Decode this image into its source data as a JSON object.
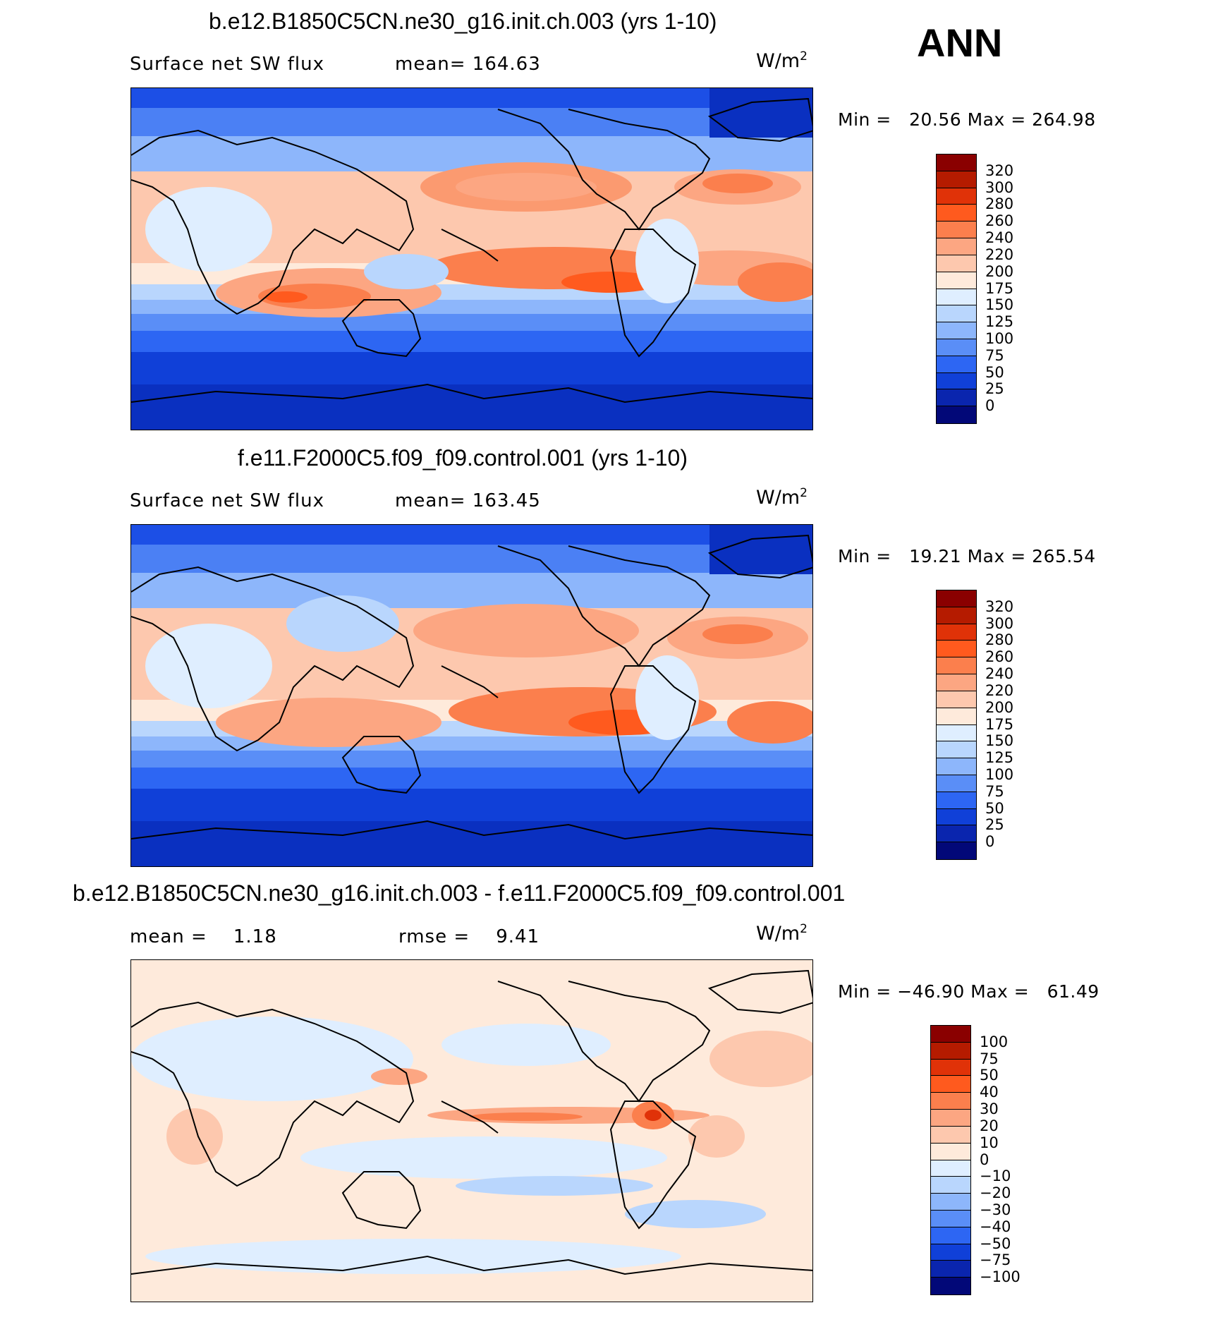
{
  "season": "ANN",
  "panels": [
    {
      "title": "b.e12.B1850C5CN.ne30_g16.init.ch.003 (yrs 1-10)",
      "variable": "Surface net SW flux",
      "stat_left": "mean= 164.63",
      "stat_right": "",
      "unit_base": "W/m",
      "unit_exp": "2",
      "minmax": "Min =   20.56 Max = 264.98",
      "colorbar": {
        "levels": [
          "320",
          "300",
          "280",
          "260",
          "240",
          "220",
          "200",
          "175",
          "150",
          "125",
          "100",
          "75",
          "50",
          "25",
          "0"
        ],
        "colors": [
          "#8a0000",
          "#b51b00",
          "#e03208",
          "#ff5a1e",
          "#fb7f4d",
          "#fca682",
          "#fdc8ae",
          "#feeadb",
          "#dfeeff",
          "#b9d6fd",
          "#8db6fb",
          "#5a8ef7",
          "#2d66f3",
          "#1040d8",
          "#0a25ae",
          "#020878"
        ]
      }
    },
    {
      "title": "f.e11.F2000C5.f09_f09.control.001 (yrs 1-10)",
      "variable": "Surface net SW flux",
      "stat_left": "mean= 163.45",
      "stat_right": "",
      "unit_base": "W/m",
      "unit_exp": "2",
      "minmax": "Min =   19.21 Max = 265.54",
      "colorbar": {
        "levels": [
          "320",
          "300",
          "280",
          "260",
          "240",
          "220",
          "200",
          "175",
          "150",
          "125",
          "100",
          "75",
          "50",
          "25",
          "0"
        ],
        "colors": [
          "#8a0000",
          "#b51b00",
          "#e03208",
          "#ff5a1e",
          "#fb7f4d",
          "#fca682",
          "#fdc8ae",
          "#feeadb",
          "#dfeeff",
          "#b9d6fd",
          "#8db6fb",
          "#5a8ef7",
          "#2d66f3",
          "#1040d8",
          "#0a25ae",
          "#020878"
        ]
      }
    },
    {
      "title": "b.e12.B1850C5CN.ne30_g16.init.ch.003 - f.e11.F2000C5.f09_f09.control.001",
      "variable": "mean =    1.18",
      "stat_left": "",
      "stat_right": "rmse =    9.41",
      "unit_base": "W/m",
      "unit_exp": "2",
      "minmax": "Min = −46.90 Max =   61.49",
      "colorbar": {
        "levels": [
          "100",
          "75",
          "50",
          "40",
          "30",
          "20",
          "10",
          "0",
          "−10",
          "−20",
          "−30",
          "−40",
          "−50",
          "−75",
          "−100"
        ],
        "colors": [
          "#8a0000",
          "#b51b00",
          "#e03208",
          "#ff5a1e",
          "#fb7f4d",
          "#fca682",
          "#fdc8ae",
          "#feeadb",
          "#dfeeff",
          "#b9d6fd",
          "#8db6fb",
          "#5a8ef7",
          "#2d66f3",
          "#1040d8",
          "#0a25ae",
          "#020878"
        ]
      }
    }
  ]
}
